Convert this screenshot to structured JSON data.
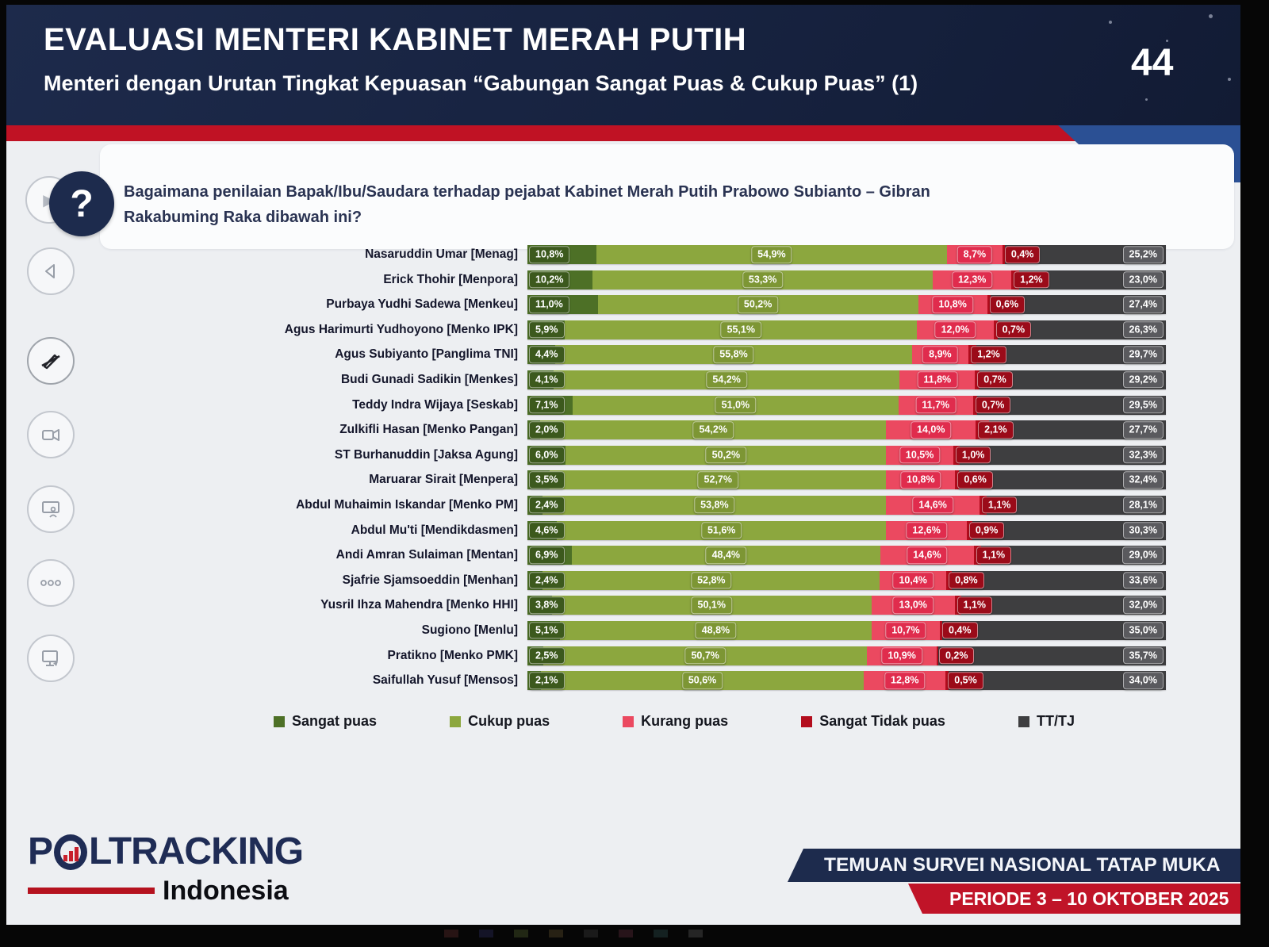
{
  "page": {
    "number": "44"
  },
  "header": {
    "title": "EVALUASI MENTERI KABINET MERAH PUTIH",
    "subtitle": "Menteri dengan Urutan Tingkat Kepuasan “Gabungan Sangat Puas & Cukup Puas” (1)"
  },
  "question": {
    "text": "Bagaimana penilaian Bapak/Ibu/Saudara terhadap pejabat Kabinet Merah Putih Prabowo Subianto – Gibran Rakabuming Raka dibawah ini?"
  },
  "chart_data": {
    "type": "bar",
    "orientation": "horizontal",
    "stacked": true,
    "unit": "percent",
    "xlim": [
      0,
      100
    ],
    "legend_position": "bottom",
    "value_label_style": "inside segments, one decimal with comma, e.g. 10,8%",
    "categories": [
      "Nasaruddin Umar [Menag]",
      "Erick Thohir [Menpora]",
      "Purbaya Yudhi Sadewa [Menkeu]",
      "Agus Harimurti Yudhoyono [Menko IPK]",
      "Agus Subiyanto [Panglima TNI]",
      "Budi Gunadi Sadikin [Menkes]",
      "Teddy Indra Wijaya [Seskab]",
      "Zulkifli Hasan [Menko Pangan]",
      "ST Burhanuddin [Jaksa Agung]",
      "Maruarar Sirait [Menpera]",
      "Abdul Muhaimin Iskandar [Menko PM]",
      "Abdul Mu'ti [Mendikdasmen]",
      "Andi Amran Sulaiman [Mentan]",
      "Sjafrie Sjamsoeddin [Menhan]",
      "Yusril Ihza Mahendra [Menko HHI]",
      "Sugiono [Menlu]",
      "Pratikno [Menko PMK]",
      "Saifullah Yusuf [Mensos]"
    ],
    "series": [
      {
        "name": "Sangat puas",
        "color": "#4d7026",
        "label_bg": "#3c591d",
        "values": [
          10.8,
          10.2,
          11.0,
          5.9,
          4.4,
          4.1,
          7.1,
          2.0,
          6.0,
          3.5,
          2.4,
          4.6,
          6.9,
          2.4,
          3.8,
          5.1,
          2.5,
          2.1
        ]
      },
      {
        "name": "Cukup puas",
        "color": "#8ca73e",
        "label_bg": "#7d9634",
        "values": [
          54.9,
          53.3,
          50.2,
          55.1,
          55.8,
          54.2,
          51.0,
          54.2,
          50.2,
          52.7,
          53.8,
          51.6,
          48.4,
          52.8,
          50.1,
          48.8,
          50.7,
          50.6
        ]
      },
      {
        "name": "Kurang puas",
        "color": "#eb4960",
        "label_bg": "#e02c4d",
        "values": [
          8.7,
          12.3,
          10.8,
          12.0,
          8.9,
          11.8,
          11.7,
          14.0,
          10.5,
          10.8,
          14.6,
          12.6,
          14.6,
          10.4,
          13.0,
          10.7,
          10.9,
          12.8
        ]
      },
      {
        "name": "Sangat Tidak puas",
        "color": "#b30d1d",
        "label_bg": "#9b0b19",
        "values": [
          0.4,
          1.2,
          0.6,
          0.7,
          1.2,
          0.7,
          0.7,
          2.1,
          1.0,
          0.6,
          1.1,
          0.9,
          1.1,
          0.8,
          1.1,
          0.4,
          0.2,
          0.5
        ]
      },
      {
        "name": "TT/TJ",
        "color": "#3e3e40",
        "label_bg": "#5a5a5e",
        "values": [
          25.2,
          23.0,
          27.4,
          26.3,
          29.7,
          29.2,
          29.5,
          27.7,
          32.3,
          32.4,
          28.1,
          30.3,
          29.0,
          33.6,
          32.0,
          35.0,
          35.7,
          34.0
        ]
      }
    ]
  },
  "sidebar": {
    "icons": [
      "question-badge",
      "back",
      "pen-off",
      "video-camera",
      "presentation-screen",
      "more-options",
      "screen-share"
    ]
  },
  "footer": {
    "brand": "POLTRACKING",
    "brand_sub": "Indonesia",
    "banner_primary": "TEMUAN SURVEI NASIONAL TATAP MUKA",
    "banner_secondary": "PERIODE 3 – 10 OKTOBER 2025"
  },
  "colors": {
    "header_navy": "#18233f",
    "accent_red": "#c01224",
    "ribbon_blue": "#2b5094",
    "content_bg": "#edeff2",
    "brand_navy": "#1f2c55",
    "brand_red": "#b5121f"
  }
}
